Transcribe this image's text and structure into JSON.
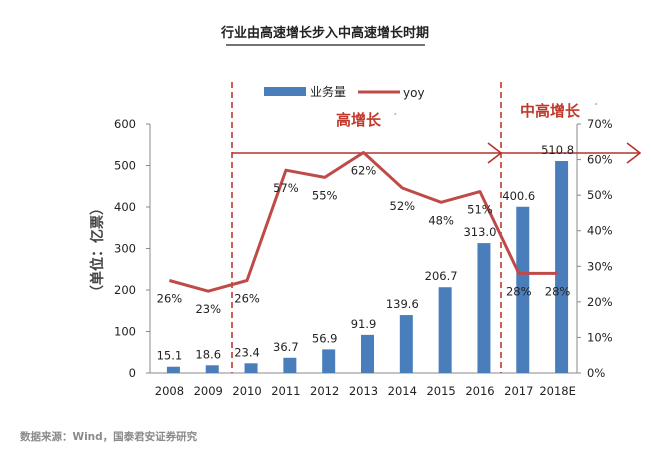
{
  "chart_data": {
    "type": "bar+line",
    "title": "行业由高速增长步入中高速增长时期",
    "categories": [
      "2008",
      "2009",
      "2010",
      "2011",
      "2012",
      "2013",
      "2014",
      "2015",
      "2016",
      "2017",
      "2018E"
    ],
    "series": [
      {
        "name": "业务量",
        "type": "bar",
        "axis": "left",
        "color": "#4a7ebb",
        "values": [
          15.1,
          18.6,
          23.4,
          36.7,
          56.9,
          91.9,
          139.6,
          206.7,
          313.0,
          400.6,
          510.8
        ],
        "labels": [
          "15.1",
          "18.6",
          "23.4",
          "36.7",
          "56.9",
          "91.9",
          "139.6",
          "206.7",
          "313.0",
          "400.6",
          "510.8"
        ]
      },
      {
        "name": "yoy",
        "type": "line",
        "axis": "right",
        "color": "#be4b48",
        "values": [
          26,
          23,
          26,
          57,
          55,
          62,
          52,
          48,
          51,
          28,
          28
        ],
        "labels": [
          "26%",
          "23%",
          "26%",
          "57%",
          "55%",
          "62%",
          "52%",
          "48%",
          "51%",
          "28%",
          "28%"
        ]
      }
    ],
    "ylabel": "（单位：亿票）",
    "ylim_left": [
      0,
      600
    ],
    "yticks_left": [
      "0",
      "100",
      "200",
      "300",
      "400",
      "500",
      "600"
    ],
    "ylim_right": [
      0,
      70
    ],
    "yticks_right": [
      "0%",
      "10%",
      "20%",
      "30%",
      "40%",
      "50%",
      "60%",
      "70%"
    ],
    "legend_position": "top-center",
    "annotations": [
      {
        "text": "高增长",
        "color": "#c0392b"
      },
      {
        "text": "中高增长",
        "color": "#c0392b"
      }
    ],
    "source": "数据来源：Wind，国泰君安证券研究",
    "colors": {
      "bar": "#4a7ebb",
      "line": "#be4b48",
      "divider": "#c0392b",
      "axis": "#888888"
    }
  }
}
